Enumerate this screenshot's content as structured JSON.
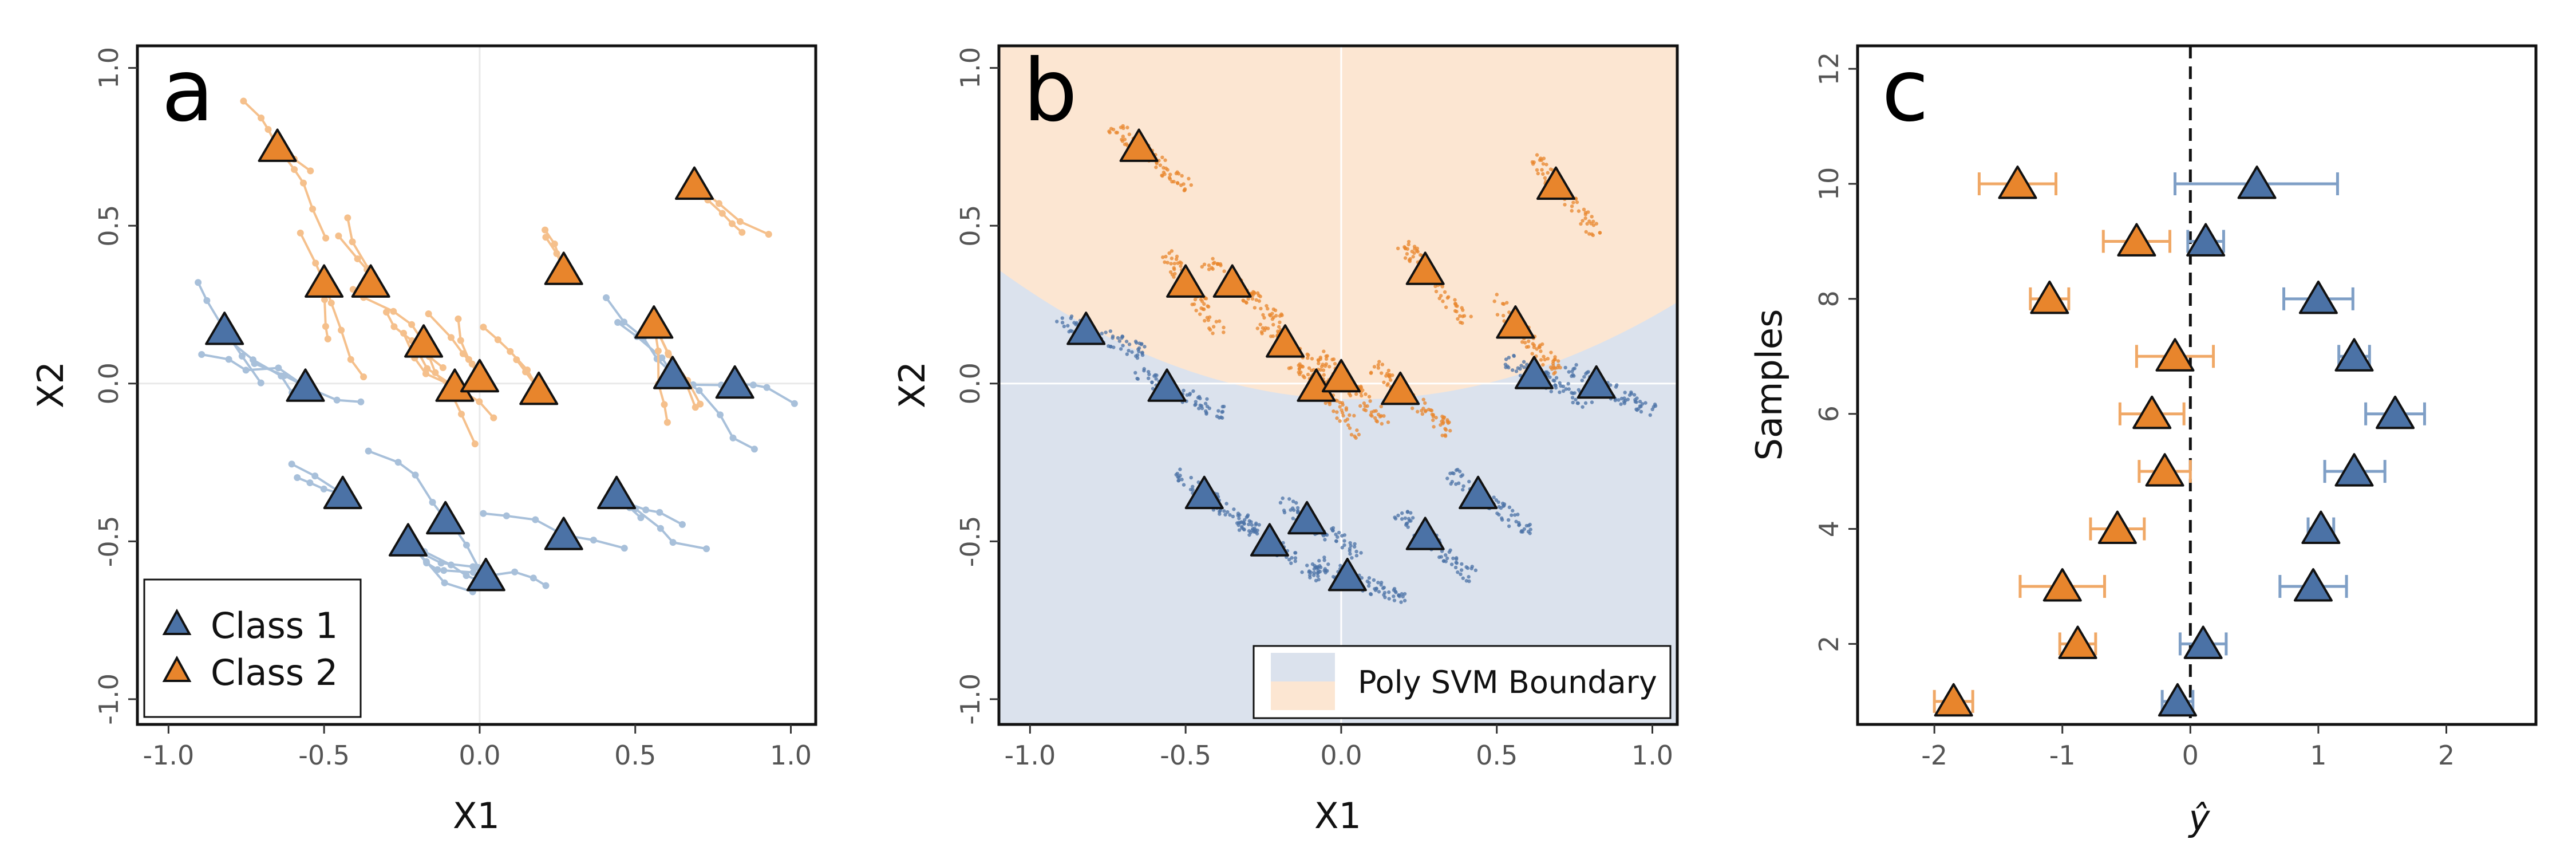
{
  "colors": {
    "class1": "#4b72a6",
    "class2": "#e8852c",
    "class1_light": "#a8c0da",
    "class2_light": "#f5c08c",
    "region1": "#dbe2ed",
    "region2": "#fce6d2",
    "edge": "#111111"
  },
  "chart_data": [
    {
      "panel": "a",
      "type": "scatter",
      "xlabel": "X1",
      "ylabel": "X2",
      "xlim": [
        -1.1,
        1.08
      ],
      "ylim": [
        -1.08,
        1.07
      ],
      "xticks": [
        "-1.0",
        "-0.5",
        "0.0",
        "0.5",
        "1.0"
      ],
      "yticks": [
        "-1.0",
        "-0.5",
        "0.0",
        "0.5",
        "1.0"
      ],
      "legend": {
        "placement": "bottom-left",
        "entries": [
          "Class 1",
          "Class 2"
        ]
      },
      "series": [
        {
          "name": "Class 1",
          "points": [
            [
              -0.82,
              0.17
            ],
            [
              -0.56,
              -0.01
            ],
            [
              -0.44,
              -0.35
            ],
            [
              -0.11,
              -0.43
            ],
            [
              -0.23,
              -0.5
            ],
            [
              0.02,
              -0.61
            ],
            [
              0.27,
              -0.48
            ],
            [
              0.44,
              -0.35
            ],
            [
              0.62,
              0.03
            ],
            [
              0.82,
              0.0
            ]
          ]
        },
        {
          "name": "Class 2",
          "points": [
            [
              -0.65,
              0.75
            ],
            [
              -0.5,
              0.32
            ],
            [
              -0.35,
              0.32
            ],
            [
              -0.18,
              0.13
            ],
            [
              -0.08,
              -0.01
            ],
            [
              0.0,
              0.02
            ],
            [
              0.19,
              -0.02
            ],
            [
              0.27,
              0.36
            ],
            [
              0.56,
              0.19
            ],
            [
              0.69,
              0.63
            ]
          ]
        }
      ]
    },
    {
      "panel": "b",
      "type": "scatter",
      "xlabel": "X1",
      "ylabel": "X2",
      "xlim": [
        -1.1,
        1.08
      ],
      "ylim": [
        -1.08,
        1.07
      ],
      "xticks": [
        "-1.0",
        "-0.5",
        "0.0",
        "0.5",
        "1.0"
      ],
      "yticks": [
        "-1.0",
        "-0.5",
        "0.0",
        "0.5",
        "1.0"
      ],
      "legend": {
        "placement": "bottom-right",
        "entries": [
          "Poly SVM Boundary"
        ]
      },
      "series": [
        {
          "name": "Class 1",
          "points": [
            [
              -0.82,
              0.17
            ],
            [
              -0.56,
              -0.01
            ],
            [
              -0.44,
              -0.35
            ],
            [
              -0.11,
              -0.43
            ],
            [
              -0.23,
              -0.5
            ],
            [
              0.02,
              -0.61
            ],
            [
              0.27,
              -0.48
            ],
            [
              0.44,
              -0.35
            ],
            [
              0.62,
              0.03
            ],
            [
              0.82,
              0.0
            ]
          ]
        },
        {
          "name": "Class 2",
          "points": [
            [
              -0.65,
              0.75
            ],
            [
              -0.5,
              0.32
            ],
            [
              -0.35,
              0.32
            ],
            [
              -0.18,
              0.13
            ],
            [
              -0.08,
              -0.01
            ],
            [
              0.0,
              0.02
            ],
            [
              0.19,
              -0.02
            ],
            [
              0.27,
              0.36
            ],
            [
              0.56,
              0.19
            ],
            [
              0.69,
              0.63
            ]
          ]
        }
      ]
    },
    {
      "panel": "c",
      "type": "scatter",
      "xlabel": "ŷ",
      "ylabel": "Samples",
      "xlim": [
        -2.6,
        2.7
      ],
      "ylim": [
        0.6,
        12.4
      ],
      "xticks": [
        "-2",
        "-1",
        "0",
        "1",
        "2"
      ],
      "yticks": [
        "2",
        "4",
        "6",
        "8",
        "10",
        "12"
      ],
      "reference_line_x": 0,
      "series": [
        {
          "name": "Class 1",
          "points": [
            {
              "y": 1,
              "x": -0.1,
              "lo": -0.22,
              "hi": 0.02
            },
            {
              "y": 2,
              "x": 0.1,
              "lo": -0.08,
              "hi": 0.28
            },
            {
              "y": 3,
              "x": 0.96,
              "lo": 0.7,
              "hi": 1.22
            },
            {
              "y": 4,
              "x": 1.02,
              "lo": 0.92,
              "hi": 1.12
            },
            {
              "y": 5,
              "x": 1.28,
              "lo": 1.05,
              "hi": 1.52
            },
            {
              "y": 6,
              "x": 1.6,
              "lo": 1.37,
              "hi": 1.83
            },
            {
              "y": 7,
              "x": 1.28,
              "lo": 1.16,
              "hi": 1.4
            },
            {
              "y": 8,
              "x": 1.0,
              "lo": 0.73,
              "hi": 1.27
            },
            {
              "y": 9,
              "x": 0.12,
              "lo": -0.02,
              "hi": 0.26
            },
            {
              "y": 10,
              "x": 0.52,
              "lo": -0.12,
              "hi": 1.15
            }
          ]
        },
        {
          "name": "Class 2",
          "points": [
            {
              "y": 1,
              "x": -1.85,
              "lo": -2.0,
              "hi": -1.7
            },
            {
              "y": 2,
              "x": -0.88,
              "lo": -1.02,
              "hi": -0.74
            },
            {
              "y": 3,
              "x": -1.0,
              "lo": -1.33,
              "hi": -0.67
            },
            {
              "y": 4,
              "x": -0.57,
              "lo": -0.78,
              "hi": -0.36
            },
            {
              "y": 5,
              "x": -0.2,
              "lo": -0.4,
              "hi": 0.0
            },
            {
              "y": 6,
              "x": -0.3,
              "lo": -0.55,
              "hi": -0.05
            },
            {
              "y": 7,
              "x": -0.12,
              "lo": -0.42,
              "hi": 0.18
            },
            {
              "y": 8,
              "x": -1.1,
              "lo": -1.25,
              "hi": -0.95
            },
            {
              "y": 9,
              "x": -0.42,
              "lo": -0.68,
              "hi": -0.16
            },
            {
              "y": 10,
              "x": -1.35,
              "lo": -1.65,
              "hi": -1.05
            }
          ]
        }
      ]
    }
  ]
}
